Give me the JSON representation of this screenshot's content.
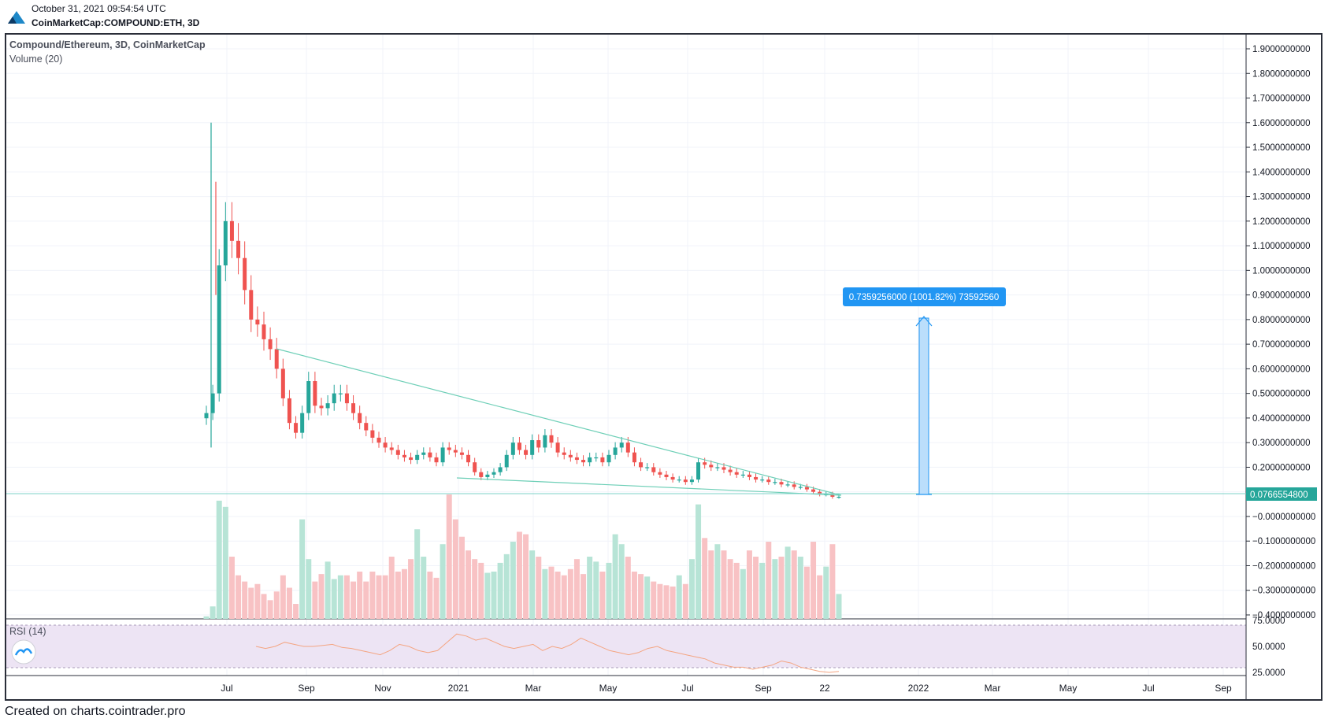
{
  "header": {
    "timestamp": "October 31, 2021 09:54:54 UTC",
    "symbol": "CoinMarketCap:COMPOUND:ETH, 3D"
  },
  "legend": {
    "title": "Compound/Ethereum, 3D, CoinMarketCap",
    "volume": "Volume (20)",
    "rsi": "RSI (14)"
  },
  "footer": {
    "text": "Created on charts.cointrader.pro"
  },
  "colors": {
    "up": "#26a69a",
    "down": "#ef5350",
    "vol_up": "#b7e4d6",
    "vol_down": "#f8c2c4",
    "trendline": "#6ecfb7",
    "measure": "#2196f3",
    "rsi_line": "#f4a582",
    "rsi_band": "#e8e0f2"
  },
  "chart_data": {
    "type": "candlestick",
    "title": "Compound/Ethereum, 3D, CoinMarketCap",
    "price_axis": {
      "ticks": [
        "1.9000000000",
        "1.8000000000",
        "1.7000000000",
        "1.6000000000",
        "1.5000000000",
        "1.4000000000",
        "1.3000000000",
        "1.2000000000",
        "1.1000000000",
        "1.0000000000",
        "0.9000000000",
        "0.8000000000",
        "0.7000000000",
        "0.6000000000",
        "0.5000000000",
        "0.4000000000",
        "0.3000000000",
        "0.2000000000",
        "0.1000000000",
        "−0.0000000000",
        "−0.1000000000",
        "−0.2000000000",
        "−0.3000000000",
        "−0.4000000000"
      ],
      "range": [
        -0.45,
        1.95
      ]
    },
    "rsi_axis": {
      "ticks": [
        "75.0000",
        "50.0000",
        "25.0000"
      ],
      "range": [
        25,
        75
      ]
    },
    "time_axis": {
      "labels": [
        "Jul",
        "Sep",
        "Nov",
        "2021",
        "Mar",
        "May",
        "Jul",
        "Sep",
        "22",
        "2022",
        "Mar",
        "May",
        "Jul",
        "Sep"
      ]
    },
    "last_price": "0.0766554800",
    "measure_label": "0.7359256000 (1001.82%) 73592560",
    "price_series": [
      0.42,
      0.5,
      1.02,
      1.2,
      1.12,
      1.05,
      0.92,
      0.8,
      0.78,
      0.72,
      0.68,
      0.6,
      0.48,
      0.38,
      0.34,
      0.42,
      0.55,
      0.45,
      0.44,
      0.46,
      0.5,
      0.5,
      0.46,
      0.42,
      0.38,
      0.35,
      0.32,
      0.3,
      0.28,
      0.27,
      0.25,
      0.24,
      0.23,
      0.25,
      0.26,
      0.24,
      0.22,
      0.28,
      0.27,
      0.26,
      0.25,
      0.22,
      0.18,
      0.16,
      0.17,
      0.18,
      0.2,
      0.25,
      0.3,
      0.27,
      0.25,
      0.31,
      0.28,
      0.33,
      0.3,
      0.26,
      0.25,
      0.24,
      0.23,
      0.22,
      0.24,
      0.24,
      0.22,
      0.25,
      0.28,
      0.3,
      0.26,
      0.22,
      0.2,
      0.2,
      0.18,
      0.17,
      0.16,
      0.15,
      0.15,
      0.14,
      0.15,
      0.22,
      0.21,
      0.2,
      0.2,
      0.19,
      0.18,
      0.17,
      0.17,
      0.16,
      0.15,
      0.15,
      0.14,
      0.14,
      0.13,
      0.13,
      0.12,
      0.12,
      0.11,
      0.1,
      0.09,
      0.09,
      0.08,
      0.08
    ],
    "volume_series": [
      0.02,
      0.1,
      0.95,
      0.9,
      0.5,
      0.35,
      0.3,
      0.25,
      0.28,
      0.2,
      0.15,
      0.22,
      0.35,
      0.25,
      0.12,
      0.8,
      0.48,
      0.3,
      0.36,
      0.46,
      0.32,
      0.35,
      0.35,
      0.3,
      0.38,
      0.3,
      0.38,
      0.35,
      0.35,
      0.5,
      0.38,
      0.4,
      0.48,
      0.72,
      0.5,
      0.38,
      0.33,
      0.6,
      1.0,
      0.8,
      0.66,
      0.55,
      0.48,
      0.45,
      0.37,
      0.38,
      0.45,
      0.52,
      0.62,
      0.7,
      0.68,
      0.55,
      0.5,
      0.4,
      0.42,
      0.38,
      0.35,
      0.4,
      0.48,
      0.36,
      0.5,
      0.46,
      0.38,
      0.45,
      0.68,
      0.6,
      0.5,
      0.38,
      0.36,
      0.34,
      0.3,
      0.28,
      0.27,
      0.26,
      0.35,
      0.28,
      0.48,
      0.92,
      0.65,
      0.55,
      0.6,
      0.55,
      0.48,
      0.45,
      0.4,
      0.55,
      0.5,
      0.45,
      0.62,
      0.48,
      0.5,
      0.58,
      0.55,
      0.5,
      0.42,
      0.62,
      0.35,
      0.42,
      0.6,
      0.2
    ],
    "rsi_series": [
      50,
      48,
      50,
      54,
      52,
      50,
      50,
      51,
      52,
      49,
      48,
      46,
      44,
      42,
      46,
      52,
      50,
      46,
      44,
      46,
      54,
      62,
      60,
      56,
      58,
      54,
      50,
      48,
      50,
      52,
      46,
      50,
      48,
      52,
      58,
      54,
      50,
      46,
      44,
      42,
      44,
      48,
      50,
      46,
      44,
      42,
      40,
      38,
      34,
      32,
      30,
      30,
      28,
      30,
      32,
      36,
      34,
      30,
      28,
      26,
      25,
      26
    ]
  }
}
